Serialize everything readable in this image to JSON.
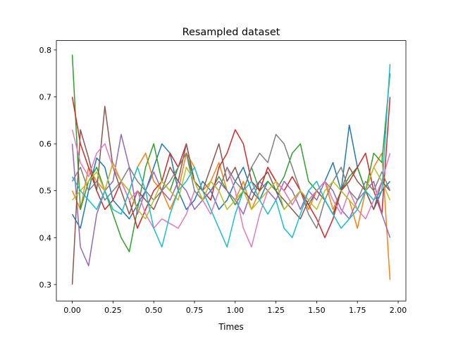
{
  "chart_data": {
    "type": "line",
    "title": "Resampled dataset",
    "xlabel": "Times",
    "ylabel": "",
    "xlim": [
      -0.0975,
      2.0475
    ],
    "ylim": [
      0.265,
      0.82
    ],
    "xticks": [
      0.0,
      0.25,
      0.5,
      0.75,
      1.0,
      1.25,
      1.5,
      1.75,
      2.0
    ],
    "xtick_labels": [
      "0.00",
      "0.25",
      "0.50",
      "0.75",
      "1.00",
      "1.25",
      "1.50",
      "1.75",
      "2.00"
    ],
    "yticks": [
      0.3,
      0.4,
      0.5,
      0.6,
      0.7,
      0.8
    ],
    "ytick_labels": [
      "0.3",
      "0.4",
      "0.5",
      "0.6",
      "0.7",
      "0.8"
    ],
    "grid": false,
    "legend": false,
    "x": [
      0.0,
      0.05,
      0.1,
      0.15,
      0.2,
      0.25,
      0.3,
      0.35,
      0.4,
      0.45,
      0.5,
      0.55,
      0.6,
      0.65,
      0.7,
      0.75,
      0.8,
      0.85,
      0.9,
      0.95,
      1.0,
      1.05,
      1.1,
      1.15,
      1.2,
      1.25,
      1.3,
      1.35,
      1.4,
      1.45,
      1.5,
      1.55,
      1.6,
      1.65,
      1.7,
      1.75,
      1.8,
      1.85,
      1.9,
      1.95
    ],
    "series": [
      {
        "color": "#1f77b4",
        "values": [
          0.45,
          0.42,
          0.5,
          0.57,
          0.55,
          0.48,
          0.46,
          0.44,
          0.47,
          0.5,
          0.55,
          0.6,
          0.58,
          0.5,
          0.46,
          0.48,
          0.52,
          0.5,
          0.46,
          0.48,
          0.52,
          0.55,
          0.5,
          0.48,
          0.52,
          0.5,
          0.46,
          0.48,
          0.5,
          0.47,
          0.5,
          0.52,
          0.56,
          0.5,
          0.64,
          0.55,
          0.5,
          0.46,
          0.5,
          0.52
        ]
      },
      {
        "color": "#ff7f0e",
        "values": [
          0.5,
          0.46,
          0.55,
          0.52,
          0.5,
          0.56,
          0.52,
          0.5,
          0.55,
          0.58,
          0.52,
          0.5,
          0.46,
          0.5,
          0.58,
          0.55,
          0.5,
          0.52,
          0.56,
          0.5,
          0.48,
          0.52,
          0.46,
          0.5,
          0.55,
          0.52,
          0.5,
          0.47,
          0.5,
          0.46,
          0.5,
          0.52,
          0.46,
          0.5,
          0.48,
          0.42,
          0.5,
          0.55,
          0.58,
          0.31
        ]
      },
      {
        "color": "#2ca02c",
        "values": [
          0.79,
          0.46,
          0.52,
          0.55,
          0.5,
          0.45,
          0.4,
          0.37,
          0.46,
          0.55,
          0.6,
          0.52,
          0.5,
          0.55,
          0.58,
          0.52,
          0.48,
          0.5,
          0.53,
          0.5,
          0.47,
          0.5,
          0.55,
          0.5,
          0.52,
          0.5,
          0.53,
          0.58,
          0.6,
          0.52,
          0.5,
          0.48,
          0.45,
          0.5,
          0.53,
          0.55,
          0.5,
          0.58,
          0.56,
          0.75
        ]
      },
      {
        "color": "#d62728",
        "values": [
          0.7,
          0.6,
          0.55,
          0.5,
          0.46,
          0.48,
          0.52,
          0.48,
          0.42,
          0.46,
          0.5,
          0.52,
          0.58,
          0.55,
          0.6,
          0.52,
          0.5,
          0.48,
          0.55,
          0.58,
          0.63,
          0.6,
          0.52,
          0.5,
          0.55,
          0.52,
          0.5,
          0.53,
          0.5,
          0.47,
          0.44,
          0.4,
          0.44,
          0.5,
          0.52,
          0.55,
          0.58,
          0.5,
          0.45,
          0.7
        ]
      },
      {
        "color": "#9467bd",
        "values": [
          0.6,
          0.38,
          0.34,
          0.45,
          0.5,
          0.52,
          0.62,
          0.55,
          0.45,
          0.5,
          0.54,
          0.5,
          0.48,
          0.52,
          0.5,
          0.46,
          0.48,
          0.5,
          0.52,
          0.5,
          0.48,
          0.45,
          0.5,
          0.52,
          0.5,
          0.48,
          0.52,
          0.5,
          0.46,
          0.5,
          0.48,
          0.52,
          0.5,
          0.46,
          0.44,
          0.48,
          0.5,
          0.52,
          0.45,
          0.4
        ]
      },
      {
        "color": "#8c564b",
        "values": [
          0.3,
          0.63,
          0.57,
          0.5,
          0.68,
          0.55,
          0.5,
          0.45,
          0.5,
          0.48,
          0.46,
          0.5,
          0.55,
          0.52,
          0.6,
          0.52,
          0.5,
          0.55,
          0.6,
          0.52,
          0.55,
          0.5,
          0.48,
          0.52,
          0.54,
          0.5,
          0.48,
          0.46,
          0.44,
          0.48,
          0.5,
          0.48,
          0.45,
          0.5,
          0.55,
          0.52,
          0.5,
          0.46,
          0.52,
          0.5
        ]
      },
      {
        "color": "#e377c2",
        "values": [
          0.63,
          0.56,
          0.53,
          0.58,
          0.6,
          0.55,
          0.52,
          0.48,
          0.5,
          0.45,
          0.42,
          0.44,
          0.43,
          0.42,
          0.45,
          0.5,
          0.48,
          0.45,
          0.5,
          0.55,
          0.5,
          0.42,
          0.38,
          0.45,
          0.5,
          0.52,
          0.5,
          0.47,
          0.5,
          0.48,
          0.5,
          0.52,
          0.48,
          0.45,
          0.5,
          0.46,
          0.44,
          0.48,
          0.52,
          0.58
        ]
      },
      {
        "color": "#7f7f7f",
        "values": [
          0.52,
          0.55,
          0.5,
          0.52,
          0.48,
          0.5,
          0.52,
          0.55,
          0.52,
          0.5,
          0.48,
          0.5,
          0.52,
          0.55,
          0.58,
          0.5,
          0.48,
          0.52,
          0.5,
          0.55,
          0.52,
          0.5,
          0.55,
          0.58,
          0.56,
          0.62,
          0.6,
          0.55,
          0.5,
          0.45,
          0.42,
          0.48,
          0.52,
          0.55,
          0.5,
          0.48,
          0.52,
          0.5,
          0.54,
          0.5
        ]
      },
      {
        "color": "#bcbd22",
        "values": [
          0.48,
          0.5,
          0.52,
          0.54,
          0.5,
          0.56,
          0.52,
          0.5,
          0.46,
          0.44,
          0.48,
          0.52,
          0.5,
          0.48,
          0.55,
          0.52,
          0.48,
          0.52,
          0.5,
          0.46,
          0.48,
          0.5,
          0.46,
          0.48,
          0.5,
          0.52,
          0.46,
          0.48,
          0.5,
          0.48,
          0.46,
          0.5,
          0.52,
          0.5,
          0.48,
          0.46,
          0.5,
          0.55,
          0.52,
          0.48
        ]
      },
      {
        "color": "#17becf",
        "values": [
          0.53,
          0.5,
          0.48,
          0.46,
          0.5,
          0.46,
          0.45,
          0.5,
          0.55,
          0.5,
          0.42,
          0.38,
          0.45,
          0.5,
          0.52,
          0.55,
          0.5,
          0.46,
          0.42,
          0.38,
          0.45,
          0.5,
          0.52,
          0.48,
          0.45,
          0.48,
          0.42,
          0.4,
          0.45,
          0.5,
          0.52,
          0.48,
          0.45,
          0.42,
          0.44,
          0.46,
          0.5,
          0.48,
          0.5,
          0.77
        ]
      }
    ]
  }
}
